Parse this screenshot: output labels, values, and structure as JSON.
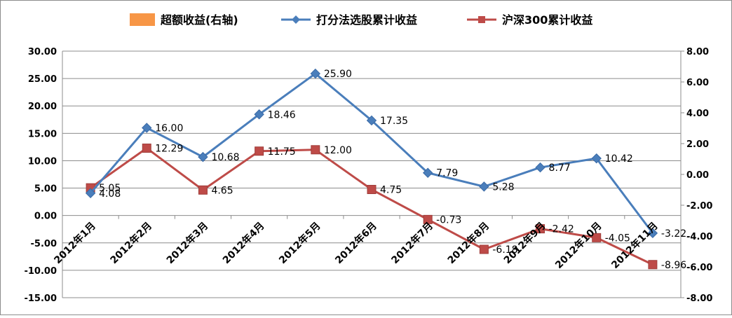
{
  "chart_data": {
    "type": "bar+line",
    "categories": [
      "2012年1月",
      "2012年2月",
      "2012年3月",
      "2012年4月",
      "2012年5月",
      "2012年6月",
      "2012年7月",
      "2012年8月",
      "2012年9月",
      "2012年10月",
      "2012年11月"
    ],
    "series": [
      {
        "name": "超额收益(右轴)",
        "type": "bar",
        "axis": "right",
        "color": "#f79646",
        "values": [
          null,
          null,
          null,
          null,
          null,
          null,
          null,
          null,
          null,
          null,
          null
        ]
      },
      {
        "name": "打分法选股累计收益",
        "type": "line",
        "axis": "left",
        "color": "#4a7ebb",
        "marker": "diamond",
        "values": [
          4.08,
          16.0,
          10.68,
          18.46,
          25.9,
          17.35,
          7.79,
          5.28,
          8.77,
          10.42,
          -3.22
        ]
      },
      {
        "name": "沪深300累计收益",
        "type": "line",
        "axis": "left",
        "color": "#be4b48",
        "marker": "square",
        "values": [
          5.05,
          12.29,
          4.65,
          11.75,
          12.0,
          4.75,
          -0.73,
          -6.18,
          -2.42,
          -4.05,
          -8.96
        ]
      }
    ],
    "y_left": {
      "min": -15,
      "max": 30,
      "step": 5,
      "ticks": [
        "30.00",
        "25.00",
        "20.00",
        "15.00",
        "10.00",
        "5.00",
        "0.00",
        "-5.00",
        "-10.00",
        "-15.00"
      ]
    },
    "y_right": {
      "min": -8,
      "max": 8,
      "step": 2,
      "ticks": [
        "8.00",
        "6.00",
        "4.00",
        "2.00",
        "0.00",
        "-2.00",
        "-4.00",
        "-6.00",
        "-8.00"
      ]
    },
    "labels_blue": [
      "4.08",
      "16.00",
      "10.68",
      "18.46",
      "25.90",
      "17.35",
      "7.79",
      "5.28",
      "8.77",
      "10.42",
      "-3.22"
    ],
    "labels_red": [
      "5.05",
      "12.29",
      "4.65",
      "11.75",
      "12.00",
      "4.75",
      "-0.73",
      "-6.18",
      "-2.42",
      "-4.05",
      "-8.96"
    ],
    "grid": true,
    "legend": {
      "position": "top",
      "items": [
        "超额收益(右轴)",
        "打分法选股累计收益",
        "沪深300累计收益"
      ]
    }
  }
}
